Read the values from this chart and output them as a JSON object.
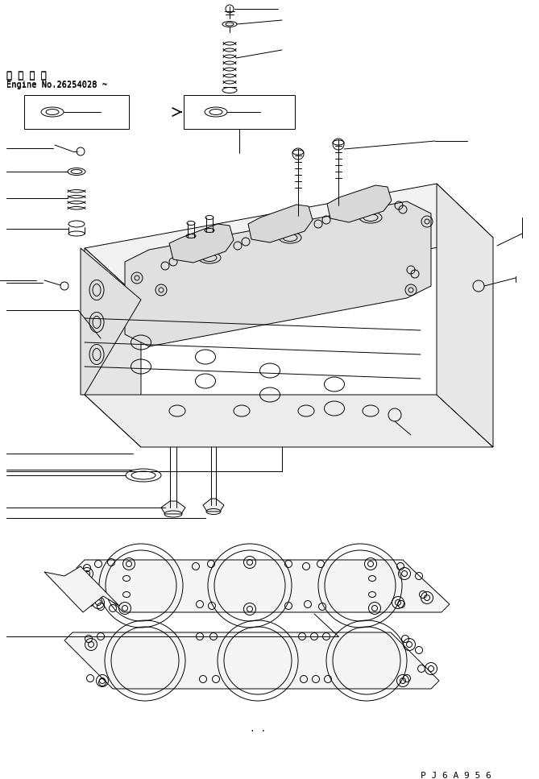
{
  "background_color": "#ffffff",
  "line_color": "#000000",
  "fig_width": 6.69,
  "fig_height": 9.67,
  "dpi": 100,
  "text_top_left_1": "通 用 号 機",
  "text_top_left_2": "Engine No.26254028 ~",
  "text_bottom_right": "P J 6 A 9 5 6",
  "font_family": "monospace",
  "lw": 0.7
}
